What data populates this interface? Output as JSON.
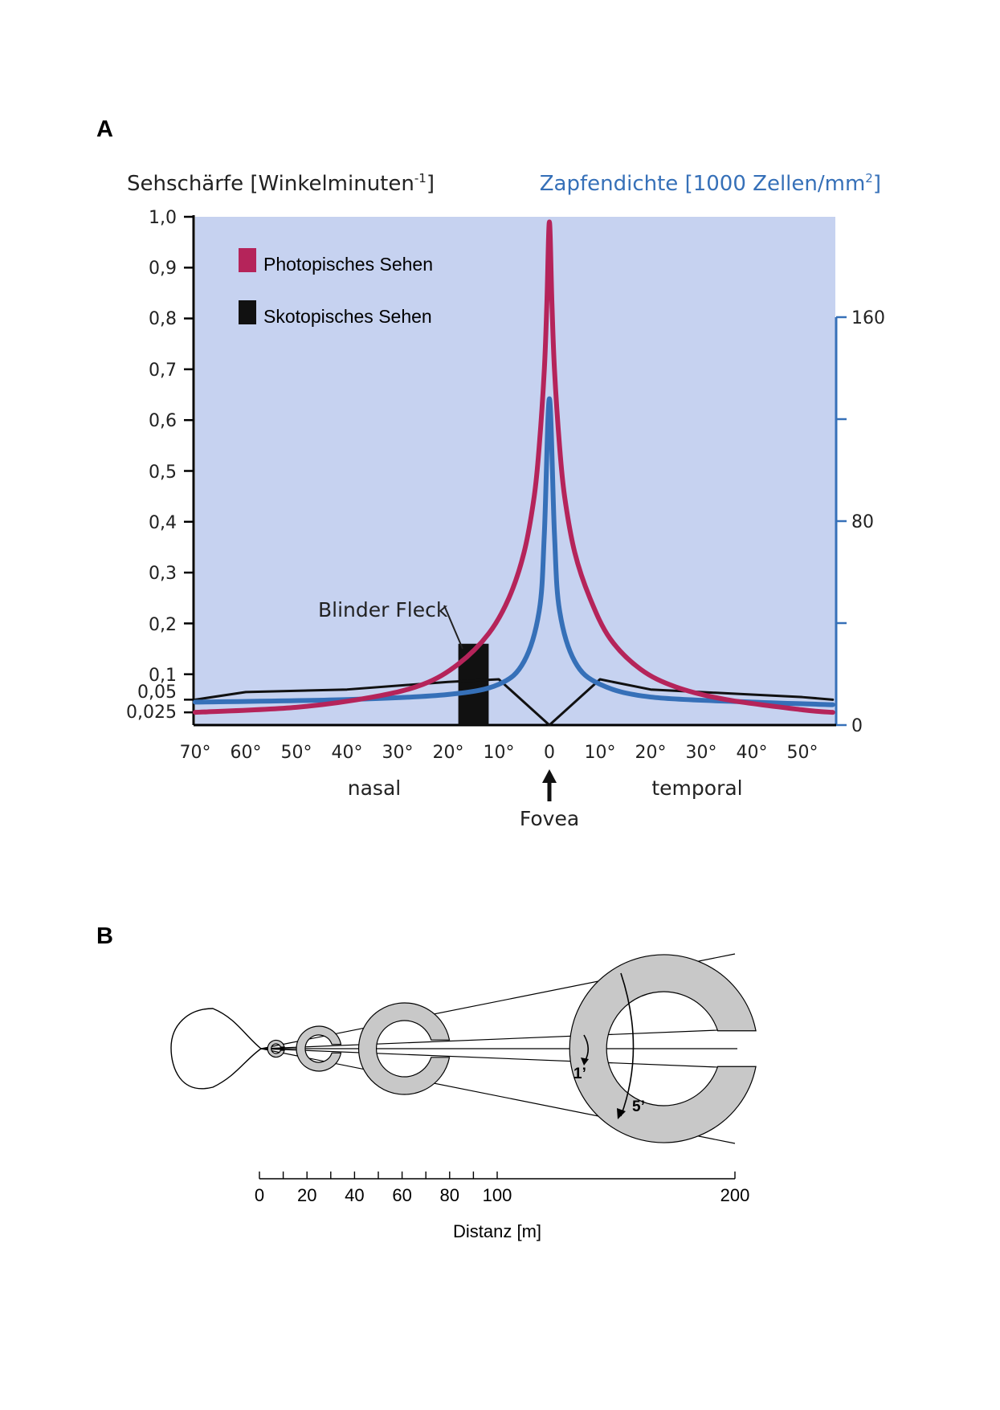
{
  "panel_a": {
    "letter": "A",
    "left_axis_title": "Sehschärfe [Winkelminuten",
    "left_axis_title_sup": "-1",
    "left_axis_title_end": "]",
    "right_axis_title": "Zapfendichte [1000 Zellen/mm",
    "right_axis_title_sup": "2",
    "right_axis_title_end": "]",
    "left_ticks": [
      "1,0",
      "0,9",
      "0,8",
      "0,7",
      "0,6",
      "0,5",
      "0,4",
      "0,3",
      "0,2",
      "0,1",
      "0,05",
      "0,025"
    ],
    "right_ticks": [
      "160",
      "80",
      "0"
    ],
    "x_ticks": [
      "70°",
      "60°",
      "50°",
      "40°",
      "30°",
      "20°",
      "10°",
      "0",
      "10°",
      "20°",
      "30°",
      "40°",
      "50°"
    ],
    "nasal_label": "nasal",
    "temporal_label": "temporal",
    "fovea_label": "Fovea",
    "blind_spot_label": "Blinder Fleck",
    "legend": [
      {
        "label": "Photopisches Sehen",
        "color": "#b5245a"
      },
      {
        "label": "Skotopisches Sehen",
        "color": "#111111"
      }
    ],
    "colors": {
      "plot_background": "#c6d2f0",
      "photopic": "#b5245a",
      "cones": "#3670b8",
      "scotopic": "#111111",
      "right_axis": "#3670b8"
    }
  },
  "chart_data": {
    "type": "line",
    "xlabel": "",
    "x_unit": "degrees eccentricity (negative = nasal, positive = temporal)",
    "xlim": [
      -70,
      56
    ],
    "y_left_label": "Sehschärfe [Winkelminuten-1]",
    "y_right_label": "Zapfendichte [1000 Zellen/mm2]",
    "ylim_left": [
      0,
      1.0
    ],
    "ylim_right": [
      0,
      200
    ],
    "series": [
      {
        "name": "Photopisches Sehen",
        "axis": "left",
        "x": [
          -70,
          -50,
          -35,
          -25,
          -18,
          -12,
          -8,
          -5,
          -3,
          -2,
          -1,
          -0.5,
          0,
          0.5,
          1,
          2,
          3,
          5,
          8,
          12,
          18,
          25,
          35,
          50,
          56
        ],
        "y": [
          0.025,
          0.035,
          0.055,
          0.08,
          0.12,
          0.18,
          0.25,
          0.34,
          0.45,
          0.55,
          0.7,
          0.83,
          0.99,
          0.83,
          0.7,
          0.55,
          0.45,
          0.34,
          0.25,
          0.17,
          0.11,
          0.075,
          0.05,
          0.03,
          0.025
        ]
      },
      {
        "name": "Skotopisches Sehen",
        "axis": "left",
        "x": [
          -70,
          -60,
          -40,
          -20,
          -10,
          0,
          10,
          20,
          40,
          50,
          56
        ],
        "y": [
          0.05,
          0.065,
          0.07,
          0.085,
          0.09,
          0.0,
          0.09,
          0.07,
          0.06,
          0.055,
          0.05
        ]
      },
      {
        "name": "Zapfendichte",
        "axis": "right",
        "x": [
          -70,
          -40,
          -20,
          -10,
          -5,
          -2,
          -1,
          0,
          1,
          2,
          5,
          10,
          20,
          40,
          56
        ],
        "y": [
          9,
          10,
          12,
          16,
          25,
          45,
          75,
          128,
          75,
          45,
          25,
          16,
          11,
          9,
          8
        ]
      }
    ],
    "blind_spot": {
      "x_from": -18,
      "x_to": -12
    }
  },
  "panel_b": {
    "letter": "B",
    "scale_ticks": [
      "0",
      "20",
      "40",
      "60",
      "80",
      "100",
      "200"
    ],
    "scale_values": [
      0,
      20,
      40,
      60,
      80,
      100,
      200
    ],
    "axis_label": "Distanz [m]",
    "angle_small": "1’",
    "angle_large": "5’",
    "colors": {
      "ring_fill": "#c8c8c8",
      "line": "#000000"
    }
  }
}
